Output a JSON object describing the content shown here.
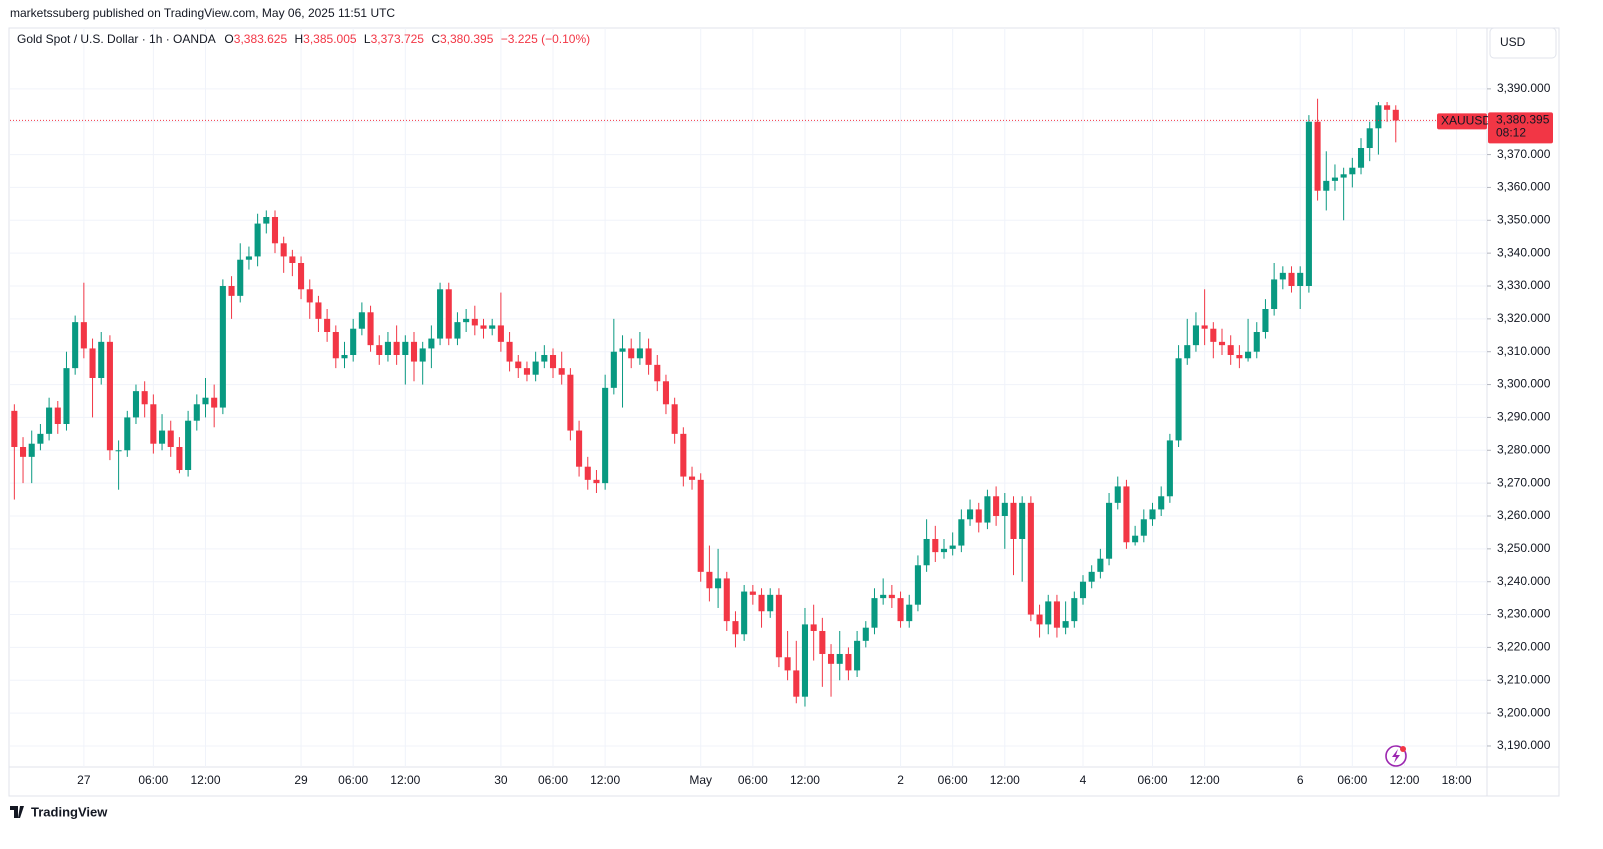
{
  "header": {
    "publisher": "marketssuberg published on TradingView.com, May 06, 2025 11:51 UTC",
    "currency_button": "USD",
    "logo": "TradingView"
  },
  "chart_data": {
    "type": "candlestick",
    "title": "Gold Spot / U.S. Dollar · 1h · OANDA",
    "legend": [
      {
        "key": "O",
        "value": "3,383.625"
      },
      {
        "key": "H",
        "value": "3,385.005"
      },
      {
        "key": "L",
        "value": "3,373.725"
      },
      {
        "key": "C",
        "value": "3,380.395"
      },
      {
        "key": "",
        "value": "−3.225 (−0.10%)"
      }
    ],
    "price_tag": {
      "symbol": "XAUUSD",
      "price": "3,380.395",
      "countdown": "08:12"
    },
    "up_color": "#089981",
    "down_color": "#f23645",
    "ylim": [
      3183.6,
      3399.7
    ],
    "yticks": [
      {
        "value": 3190,
        "label": "3,190.000"
      },
      {
        "value": 3200,
        "label": "3,200.000"
      },
      {
        "value": 3210,
        "label": "3,210.000"
      },
      {
        "value": 3220,
        "label": "3,220.000"
      },
      {
        "value": 3230,
        "label": "3,230.000"
      },
      {
        "value": 3240,
        "label": "3,240.000"
      },
      {
        "value": 3250,
        "label": "3,250.000"
      },
      {
        "value": 3260,
        "label": "3,260.000"
      },
      {
        "value": 3270,
        "label": "3,270.000"
      },
      {
        "value": 3280,
        "label": "3,280.000"
      },
      {
        "value": 3290,
        "label": "3,290.000"
      },
      {
        "value": 3300,
        "label": "3,300.000"
      },
      {
        "value": 3310,
        "label": "3,310.000"
      },
      {
        "value": 3320,
        "label": "3,320.000"
      },
      {
        "value": 3330,
        "label": "3,330.000"
      },
      {
        "value": 3340,
        "label": "3,340.000"
      },
      {
        "value": 3350,
        "label": "3,350.000"
      },
      {
        "value": 3360,
        "label": "3,360.000"
      },
      {
        "value": 3370,
        "label": "3,370.000"
      },
      {
        "value": 3380,
        "label": "3,380.000"
      },
      {
        "value": 3390,
        "label": "3,390.000"
      }
    ],
    "grid": true,
    "categories": [
      null,
      null,
      null,
      null,
      null,
      null,
      null,
      null,
      "27",
      null,
      null,
      null,
      null,
      null,
      null,
      null,
      "06:00",
      null,
      null,
      null,
      null,
      null,
      "12:00",
      null,
      null,
      null,
      null,
      null,
      null,
      null,
      null,
      null,
      null,
      "29",
      null,
      null,
      null,
      null,
      null,
      "06:00",
      null,
      null,
      null,
      null,
      null,
      "12:00",
      null,
      null,
      null,
      null,
      null,
      null,
      null,
      null,
      null,
      null,
      "30",
      null,
      null,
      null,
      null,
      null,
      "06:00",
      null,
      null,
      null,
      null,
      null,
      "12:00",
      null,
      null,
      null,
      null,
      null,
      null,
      null,
      null,
      null,
      null,
      "May",
      null,
      null,
      null,
      null,
      null,
      "06:00",
      null,
      null,
      null,
      null,
      null,
      "12:00",
      null,
      null,
      null,
      null,
      null,
      null,
      null,
      null,
      null,
      null,
      "2",
      null,
      null,
      null,
      null,
      null,
      "06:00",
      null,
      null,
      null,
      null,
      null,
      "12:00",
      null,
      null,
      null,
      null,
      null,
      null,
      null,
      null,
      "4",
      null,
      null,
      null,
      null,
      null,
      null,
      null,
      "06:00",
      null,
      null,
      null,
      null,
      null,
      "12:00",
      null,
      null,
      null,
      null,
      null,
      null,
      null,
      null,
      null,
      null,
      "6",
      null,
      null,
      null,
      null,
      null,
      "06:00",
      null,
      null,
      null,
      null,
      null,
      "12:00",
      null,
      null,
      null,
      null,
      null,
      "18:00",
      null,
      null,
      null
    ],
    "open": [
      3292,
      3281,
      3278,
      3282,
      3285,
      3293,
      3288,
      3305,
      3319,
      3311,
      3302,
      3313,
      3280,
      3280,
      3290,
      3298,
      3294,
      3282,
      3286,
      3281,
      3274,
      3289,
      3294,
      3296,
      3293,
      3330,
      3327,
      3338,
      3339,
      3349,
      3351,
      3343,
      3339,
      3337,
      3329,
      3325,
      3320,
      3316,
      3308,
      3309,
      3317,
      3322,
      3312,
      3309,
      3313,
      3309,
      3313,
      3307,
      3311,
      3314,
      3329,
      3314,
      3319,
      3320,
      3318,
      3317,
      3318,
      3313,
      3307,
      3305,
      3303,
      3307,
      3309,
      3305,
      3303,
      3286,
      3275,
      3271,
      3270,
      3299,
      3310,
      3311,
      3308,
      3311,
      3306,
      3301,
      3294,
      3285,
      3272,
      3271,
      3243,
      3238,
      3241,
      3228,
      3224,
      3237,
      3236,
      3231,
      3236,
      3217,
      3213,
      3205,
      3227,
      3225,
      3218,
      3215,
      3218,
      3213,
      3222,
      3226,
      3235,
      3236,
      3235,
      3228,
      3233,
      3245,
      3253,
      3249,
      3250,
      3251,
      3259,
      3262,
      3258,
      3266,
      3260,
      3264,
      3253,
      3264,
      3230,
      3227,
      3234,
      3226,
      3228,
      3235,
      3240,
      3243,
      3247,
      3264,
      3269,
      3252,
      3254,
      3259,
      3262,
      3266,
      3283,
      3308,
      3312,
      3318,
      3317,
      3313,
      3312,
      3309,
      3308,
      3310,
      3316,
      3323,
      3332,
      3334,
      3330,
      3330,
      3380,
      3359,
      3362,
      3363,
      3364,
      3366,
      3372,
      3378,
      3385,
      3383.625,
      null,
      null,
      null,
      null,
      null,
      null,
      null,
      null,
      null,
      null
    ],
    "high": [
      3294,
      3284,
      3286,
      3288,
      3296,
      3295,
      3310,
      3321,
      3331,
      3314,
      3316,
      3315,
      3283,
      3292,
      3300,
      3301,
      3297,
      3291,
      3289,
      3284,
      3292,
      3297,
      3302,
      3300,
      3332,
      3333,
      3343,
      3342,
      3352,
      3353,
      3353,
      3345,
      3341,
      3339,
      3332,
      3327,
      3323,
      3318,
      3313,
      3320,
      3325,
      3324,
      3315,
      3316,
      3318,
      3315,
      3316,
      3313,
      3318,
      3331,
      3331,
      3322,
      3323,
      3324,
      3320,
      3320,
      3328,
      3316,
      3309,
      3307,
      3310,
      3312,
      3311,
      3310,
      3305,
      3289,
      3278,
      3274,
      3303,
      3320,
      3315,
      3314,
      3316,
      3314,
      3309,
      3303,
      3296,
      3287,
      3275,
      3273,
      3251,
      3250,
      3243,
      3231,
      3239,
      3239,
      3238,
      3238,
      3238,
      3225,
      3222,
      3232,
      3233,
      3229,
      3221,
      3225,
      3220,
      3225,
      3228,
      3238,
      3241,
      3239,
      3237,
      3236,
      3248,
      3259,
      3257,
      3253,
      3255,
      3262,
      3265,
      3264,
      3268,
      3269,
      3267,
      3266,
      3266,
      3266,
      3233,
      3236,
      3236,
      3234,
      3237,
      3242,
      3245,
      3250,
      3267,
      3272,
      3271,
      3257,
      3262,
      3264,
      3269,
      3285,
      3312,
      3320,
      3322,
      3329,
      3319,
      3317,
      3315,
      3312,
      3320,
      3319,
      3326,
      3337,
      3336,
      3336,
      3336,
      3382,
      3387,
      3371,
      3367,
      3366,
      3369,
      3375,
      3380,
      3386,
      3386,
      3385.005,
      null,
      null,
      null,
      null,
      null,
      null,
      null,
      null,
      null,
      null
    ],
    "low": [
      3265,
      3270,
      3270,
      3280,
      3283,
      3285,
      3286,
      3303,
      3308,
      3290,
      3300,
      3277,
      3268,
      3278,
      3288,
      3290,
      3279,
      3280,
      3278,
      3273,
      3272,
      3286,
      3290,
      3287,
      3291,
      3320,
      3325,
      3335,
      3336,
      3346,
      3340,
      3334,
      3333,
      3326,
      3320,
      3316,
      3313,
      3305,
      3305,
      3307,
      3315,
      3310,
      3306,
      3307,
      3306,
      3300,
      3301,
      3300,
      3305,
      3312,
      3312,
      3312,
      3316,
      3315,
      3314,
      3315,
      3310,
      3304,
      3302,
      3301,
      3301,
      3305,
      3302,
      3300,
      3283,
      3272,
      3268,
      3267,
      3268,
      3297,
      3293,
      3305,
      3306,
      3303,
      3298,
      3291,
      3282,
      3269,
      3268,
      3240,
      3234,
      3232,
      3225,
      3220,
      3222,
      3233,
      3226,
      3229,
      3214,
      3210,
      3203,
      3202,
      3216,
      3208,
      3205,
      3210,
      3210,
      3211,
      3220,
      3224,
      3233,
      3232,
      3226,
      3226,
      3231,
      3243,
      3246,
      3247,
      3248,
      3249,
      3257,
      3255,
      3256,
      3257,
      3250,
      3242,
      3240,
      3228,
      3223,
      3224,
      3223,
      3224,
      3226,
      3233,
      3238,
      3241,
      3245,
      3262,
      3250,
      3251,
      3252,
      3257,
      3260,
      3264,
      3281,
      3306,
      3310,
      3312,
      3308,
      3309,
      3306,
      3305,
      3307,
      3308,
      3314,
      3321,
      3329,
      3328,
      3323,
      3328,
      3356,
      3353,
      3359,
      3350,
      3360,
      3364,
      3368,
      3370,
      3380,
      3373.725,
      null,
      null,
      null,
      null,
      null,
      null,
      null,
      null,
      null,
      null
    ],
    "close": [
      3281,
      3278,
      3282,
      3285,
      3293,
      3288,
      3305,
      3319,
      3311,
      3302,
      3313,
      3280,
      3280,
      3290,
      3298,
      3294,
      3282,
      3286,
      3281,
      3274,
      3289,
      3294,
      3296,
      3293,
      3330,
      3327,
      3338,
      3339,
      3349,
      3351,
      3343,
      3339,
      3337,
      3329,
      3325,
      3320,
      3316,
      3308,
      3309,
      3317,
      3322,
      3312,
      3309,
      3313,
      3309,
      3313,
      3307,
      3311,
      3314,
      3329,
      3314,
      3319,
      3320,
      3318,
      3317,
      3318,
      3313,
      3307,
      3305,
      3303,
      3307,
      3309,
      3305,
      3303,
      3286,
      3275,
      3271,
      3270,
      3299,
      3310,
      3311,
      3308,
      3311,
      3306,
      3301,
      3294,
      3285,
      3272,
      3271,
      3243,
      3238,
      3241,
      3228,
      3224,
      3237,
      3236,
      3231,
      3236,
      3217,
      3213,
      3205,
      3227,
      3225,
      3218,
      3215,
      3218,
      3213,
      3222,
      3226,
      3235,
      3236,
      3235,
      3228,
      3233,
      3245,
      3253,
      3249,
      3250,
      3251,
      3259,
      3262,
      3258,
      3266,
      3260,
      3264,
      3253,
      3264,
      3230,
      3227,
      3234,
      3226,
      3228,
      3235,
      3240,
      3243,
      3247,
      3264,
      3269,
      3252,
      3254,
      3259,
      3262,
      3266,
      3283,
      3308,
      3312,
      3318,
      3317,
      3313,
      3312,
      3309,
      3308,
      3310,
      3316,
      3323,
      3332,
      3334,
      3330,
      3334,
      3380,
      3359,
      3362,
      3363,
      3364,
      3366,
      3372,
      3378,
      3385,
      3383.625,
      3380.395,
      null,
      null,
      null,
      null,
      null,
      null,
      null,
      null,
      null,
      null
    ]
  }
}
